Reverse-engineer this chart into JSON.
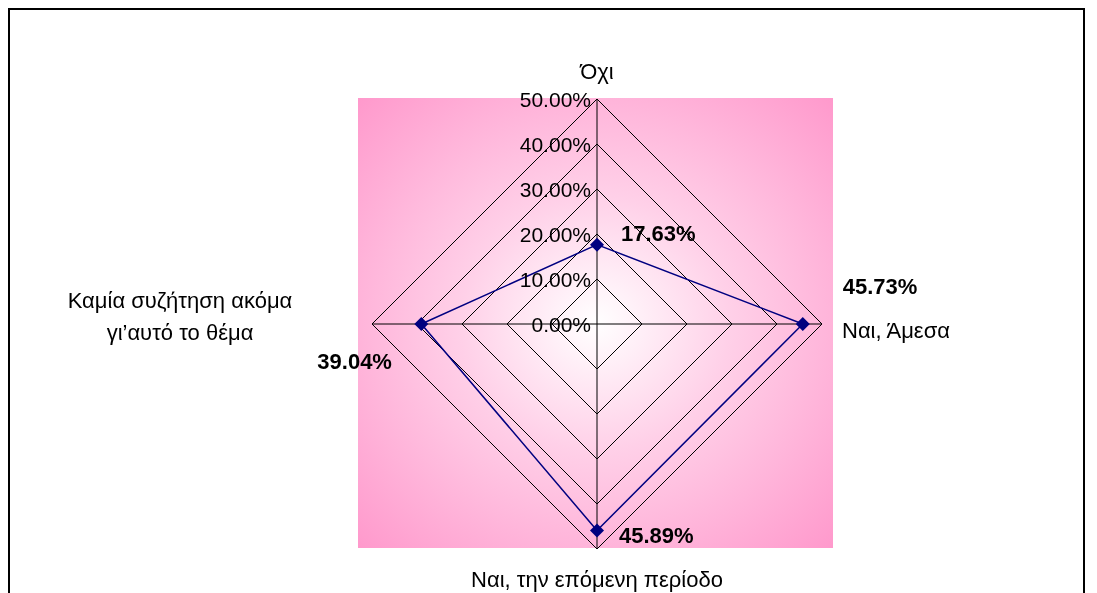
{
  "chart_data": {
    "type": "radar",
    "categories": [
      "Όχι",
      "Ναι, Άμεσα",
      "Ναι, την επόμενη περίοδο",
      "Καμία συζήτηση ακόμα γι’αυτό το θέμα"
    ],
    "series": [
      {
        "color": "#000080",
        "values": [
          17.63,
          45.73,
          45.89,
          39.04
        ],
        "value_labels": [
          "17.63%",
          "45.73%",
          "45.89%",
          "39.04%"
        ]
      }
    ],
    "ylim": [
      0,
      50
    ],
    "yticks": [
      {
        "value": 0,
        "label": "0.00%"
      },
      {
        "value": 10,
        "label": "10.00%"
      },
      {
        "value": 20,
        "label": "20.00%"
      },
      {
        "value": 30,
        "label": "30.00%"
      },
      {
        "value": 40,
        "label": "40.00%"
      },
      {
        "value": 50,
        "label": "50.00%"
      }
    ],
    "grid": true,
    "marker": "diamond"
  }
}
